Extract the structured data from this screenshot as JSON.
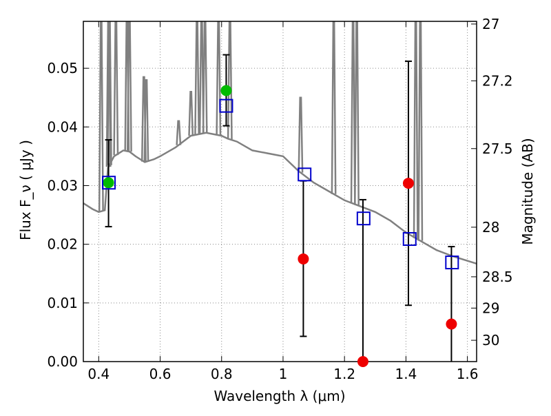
{
  "chart_data": {
    "type": "scatter",
    "xlabel": "Wavelength  λ (μm)",
    "ylabel": "Flux  F_ν  ( μJy )",
    "ylabel_right": "Magnitude (AB)",
    "xlim": [
      0.35,
      1.63
    ],
    "ylim": [
      0.0,
      0.058
    ],
    "grid": true,
    "x_ticks": [
      0.4,
      0.6,
      0.8,
      1.0,
      1.2,
      1.4,
      1.6
    ],
    "x_tick_labels": [
      "0.4",
      "0.6",
      "0.8",
      "1",
      "1.2",
      "1.4",
      "1.6"
    ],
    "y_ticks": [
      0.0,
      0.01,
      0.02,
      0.03,
      0.04,
      0.05
    ],
    "y_tick_labels": [
      "0.00",
      "0.01",
      "0.02",
      "0.03",
      "0.04",
      "0.05"
    ],
    "mag_ticks": [
      27,
      27.2,
      27.5,
      28,
      28.5,
      29,
      30
    ],
    "mag_tick_labels": [
      "27",
      "27.2",
      "27.5",
      "28",
      "28.5",
      "29",
      "30"
    ],
    "colors": {
      "sed": "#808080",
      "model": "#0000cc",
      "detection": "#00bb00",
      "non_detection": "#ee0000",
      "errorbar": "#000000",
      "grid": "#888888"
    },
    "template_sed": {
      "x": [
        0.35,
        0.38,
        0.4,
        0.42,
        0.43,
        0.44,
        0.45,
        0.48,
        0.5,
        0.52,
        0.55,
        0.58,
        0.6,
        0.65,
        0.7,
        0.75,
        0.8,
        0.82,
        0.85,
        0.9,
        0.95,
        1.0,
        1.05,
        1.1,
        1.15,
        1.2,
        1.25,
        1.3,
        1.35,
        1.4,
        1.45,
        1.5,
        1.55,
        1.63
      ],
      "y": [
        0.027,
        0.026,
        0.0255,
        0.0258,
        0.033,
        0.034,
        0.035,
        0.036,
        0.0358,
        0.035,
        0.034,
        0.0345,
        0.035,
        0.0365,
        0.0385,
        0.039,
        0.0385,
        0.038,
        0.0375,
        0.036,
        0.0355,
        0.035,
        0.0325,
        0.0305,
        0.029,
        0.0275,
        0.0265,
        0.0255,
        0.024,
        0.022,
        0.0205,
        0.019,
        0.018,
        0.0167
      ]
    },
    "emission_lines": [
      {
        "x": 0.408,
        "peak": 0.058
      },
      {
        "x": 0.432,
        "peak": 0.058
      },
      {
        "x": 0.435,
        "peak": 0.058
      },
      {
        "x": 0.456,
        "peak": 0.058
      },
      {
        "x": 0.492,
        "peak": 0.058
      },
      {
        "x": 0.5,
        "peak": 0.058
      },
      {
        "x": 0.547,
        "peak": 0.0485
      },
      {
        "x": 0.555,
        "peak": 0.048
      },
      {
        "x": 0.66,
        "peak": 0.041
      },
      {
        "x": 0.7,
        "peak": 0.046
      },
      {
        "x": 0.72,
        "peak": 0.058
      },
      {
        "x": 0.735,
        "peak": 0.058
      },
      {
        "x": 0.746,
        "peak": 0.058
      },
      {
        "x": 0.79,
        "peak": 0.058
      },
      {
        "x": 0.827,
        "peak": 0.058
      },
      {
        "x": 1.057,
        "peak": 0.045
      },
      {
        "x": 1.165,
        "peak": 0.058
      },
      {
        "x": 1.228,
        "peak": 0.058
      },
      {
        "x": 1.24,
        "peak": 0.058
      },
      {
        "x": 1.432,
        "peak": 0.058
      },
      {
        "x": 1.447,
        "peak": 0.058
      }
    ],
    "model_points": {
      "x": [
        0.433,
        0.815,
        1.07,
        1.262,
        1.412,
        1.55
      ],
      "y": [
        0.0305,
        0.0436,
        0.0319,
        0.0244,
        0.0209,
        0.0169
      ]
    },
    "observed_points": [
      {
        "x": 0.432,
        "y": 0.0305,
        "yerr_low": 0.023,
        "yerr_high": 0.0378,
        "detected": true
      },
      {
        "x": 0.815,
        "y": 0.0462,
        "yerr_low": 0.0402,
        "yerr_high": 0.0523,
        "detected": true
      },
      {
        "x": 1.066,
        "y": 0.0175,
        "yerr_low": 0.0043,
        "yerr_high": 0.0308,
        "detected": false
      },
      {
        "x": 1.26,
        "y": 0.0,
        "yerr_low": 0.0,
        "yerr_high": 0.0276,
        "detected": false
      },
      {
        "x": 1.408,
        "y": 0.0304,
        "yerr_low": 0.0096,
        "yerr_high": 0.0512,
        "detected": false
      },
      {
        "x": 1.548,
        "y": 0.0064,
        "yerr_low": 0.0,
        "yerr_high": 0.0196,
        "detected": false
      }
    ]
  }
}
